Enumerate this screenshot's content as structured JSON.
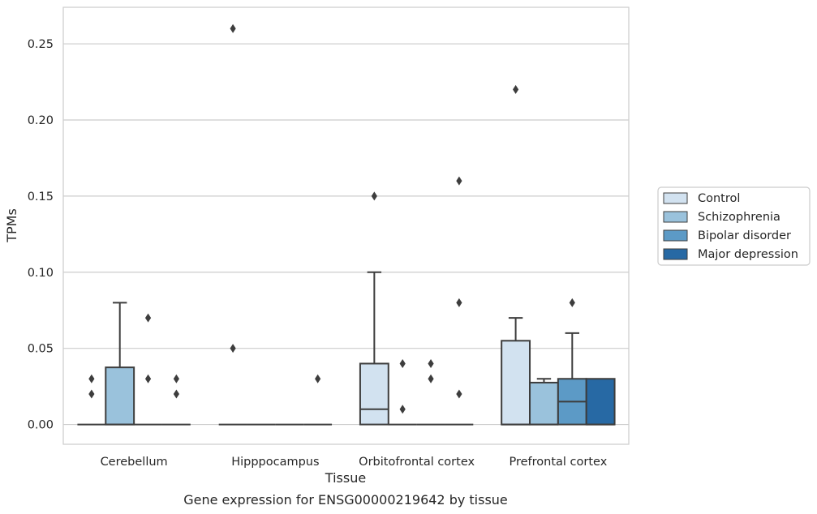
{
  "chart_data": {
    "type": "boxplot",
    "title": "Gene expression for ENSG00000219642 by tissue",
    "xlabel": "Tissue",
    "ylabel": "TPMs",
    "ylim": [
      -0.013,
      0.274
    ],
    "yticks": [
      "0.00",
      "0.05",
      "0.10",
      "0.15",
      "0.20",
      "0.25"
    ],
    "grid": "horizontal",
    "legend_position": "right-outside",
    "categories": [
      "Cerebellum",
      "Hipppocampus",
      "Orbitofrontal cortex",
      "Prefrontal cortex"
    ],
    "series": [
      {
        "name": "Control",
        "color": "#d2e2f0",
        "boxes": [
          {
            "q1": 0,
            "median": 0,
            "q3": 0,
            "whislo": 0,
            "whishi": 0,
            "fliers": [
              0.02,
              0.03
            ]
          },
          {
            "q1": 0,
            "median": 0,
            "q3": 0,
            "whislo": 0,
            "whishi": 0,
            "fliers": [
              0.26,
              0.05
            ]
          },
          {
            "q1": 0,
            "median": 0.01,
            "q3": 0.04,
            "whislo": 0,
            "whishi": 0.1,
            "fliers": [
              0.15
            ]
          },
          {
            "q1": 0,
            "median": 0,
            "q3": 0.055,
            "whislo": 0,
            "whishi": 0.07,
            "fliers": [
              0.22
            ]
          }
        ]
      },
      {
        "name": "Schizophrenia",
        "color": "#9ac2dc",
        "boxes": [
          {
            "q1": 0,
            "median": 0,
            "q3": 0.0375,
            "whislo": 0,
            "whishi": 0.08,
            "fliers": []
          },
          {
            "q1": 0,
            "median": 0,
            "q3": 0,
            "whislo": 0,
            "whishi": 0,
            "fliers": []
          },
          {
            "q1": 0,
            "median": 0,
            "q3": 0,
            "whislo": 0,
            "whishi": 0,
            "fliers": [
              0.04,
              0.01
            ]
          },
          {
            "q1": 0,
            "median": 0,
            "q3": 0.0275,
            "whislo": 0,
            "whishi": 0.03,
            "fliers": []
          }
        ]
      },
      {
        "name": "Bipolar disorder",
        "color": "#5c9ac6",
        "boxes": [
          {
            "q1": 0,
            "median": 0,
            "q3": 0,
            "whislo": 0,
            "whishi": 0,
            "fliers": [
              0.07,
              0.03
            ]
          },
          {
            "q1": 0,
            "median": 0,
            "q3": 0,
            "whislo": 0,
            "whishi": 0,
            "fliers": []
          },
          {
            "q1": 0,
            "median": 0,
            "q3": 0,
            "whislo": 0,
            "whishi": 0,
            "fliers": [
              0.04,
              0.03
            ]
          },
          {
            "q1": 0,
            "median": 0.015,
            "q3": 0.03,
            "whislo": 0,
            "whishi": 0.06,
            "fliers": [
              0.08
            ]
          }
        ]
      },
      {
        "name": "Major depression",
        "color": "#2769a4",
        "boxes": [
          {
            "q1": 0,
            "median": 0,
            "q3": 0,
            "whislo": 0,
            "whishi": 0,
            "fliers": [
              0.03,
              0.02
            ]
          },
          {
            "q1": 0,
            "median": 0,
            "q3": 0,
            "whislo": 0,
            "whishi": 0,
            "fliers": [
              0.03
            ]
          },
          {
            "q1": 0,
            "median": 0,
            "q3": 0,
            "whislo": 0,
            "whishi": 0,
            "fliers": [
              0.16,
              0.08,
              0.02
            ]
          },
          {
            "q1": 0,
            "median": 0,
            "q3": 0.03,
            "whislo": 0,
            "whishi": 0.03,
            "fliers": []
          }
        ]
      }
    ]
  }
}
